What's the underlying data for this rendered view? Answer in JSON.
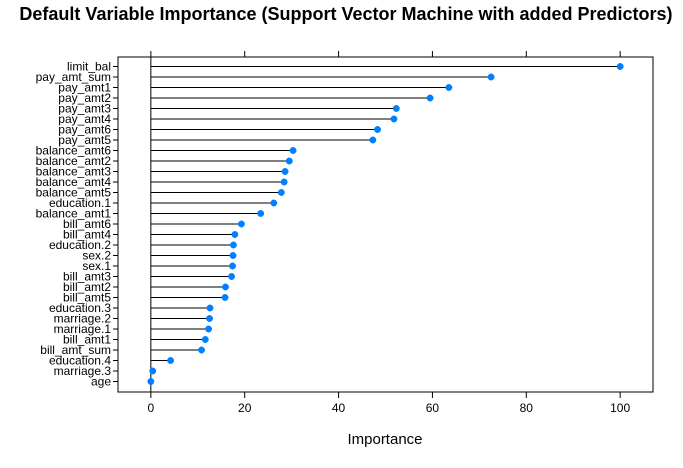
{
  "chart_data": {
    "type": "lollipop",
    "title": "Default Variable Importance (Support Vector Machine with added Predictors)",
    "xlabel": "Importance",
    "ylabel": "",
    "xlim": [
      -7,
      107
    ],
    "xticks": [
      0,
      20,
      40,
      60,
      80,
      100
    ],
    "grid": false,
    "legend": "none",
    "point_color": "#0080ff",
    "categories": [
      "limit_bal",
      "pay_amt_sum",
      "pay_amt1",
      "pay_amt2",
      "pay_amt3",
      "pay_amt4",
      "pay_amt6",
      "pay_amt5",
      "balance_amt6",
      "balance_amt2",
      "balance_amt3",
      "balance_amt4",
      "balance_amt5",
      "education.1",
      "balance_amt1",
      "bill_amt6",
      "bill_amt4",
      "education.2",
      "sex.2",
      "sex.1",
      "bill_amt3",
      "bill_amt2",
      "bill_amt5",
      "education.3",
      "marriage.2",
      "marriage.1",
      "bill_amt1",
      "bill_amt_sum",
      "education.4",
      "marriage.3",
      "age"
    ],
    "values": [
      100,
      72.5,
      63.5,
      59.5,
      52.3,
      51.8,
      48.3,
      47.3,
      30.3,
      29.5,
      28.6,
      28.4,
      27.8,
      26.2,
      23.4,
      19.3,
      17.9,
      17.6,
      17.5,
      17.4,
      17.2,
      15.9,
      15.8,
      12.6,
      12.5,
      12.3,
      11.6,
      10.8,
      4.2,
      0.4,
      0
    ]
  }
}
